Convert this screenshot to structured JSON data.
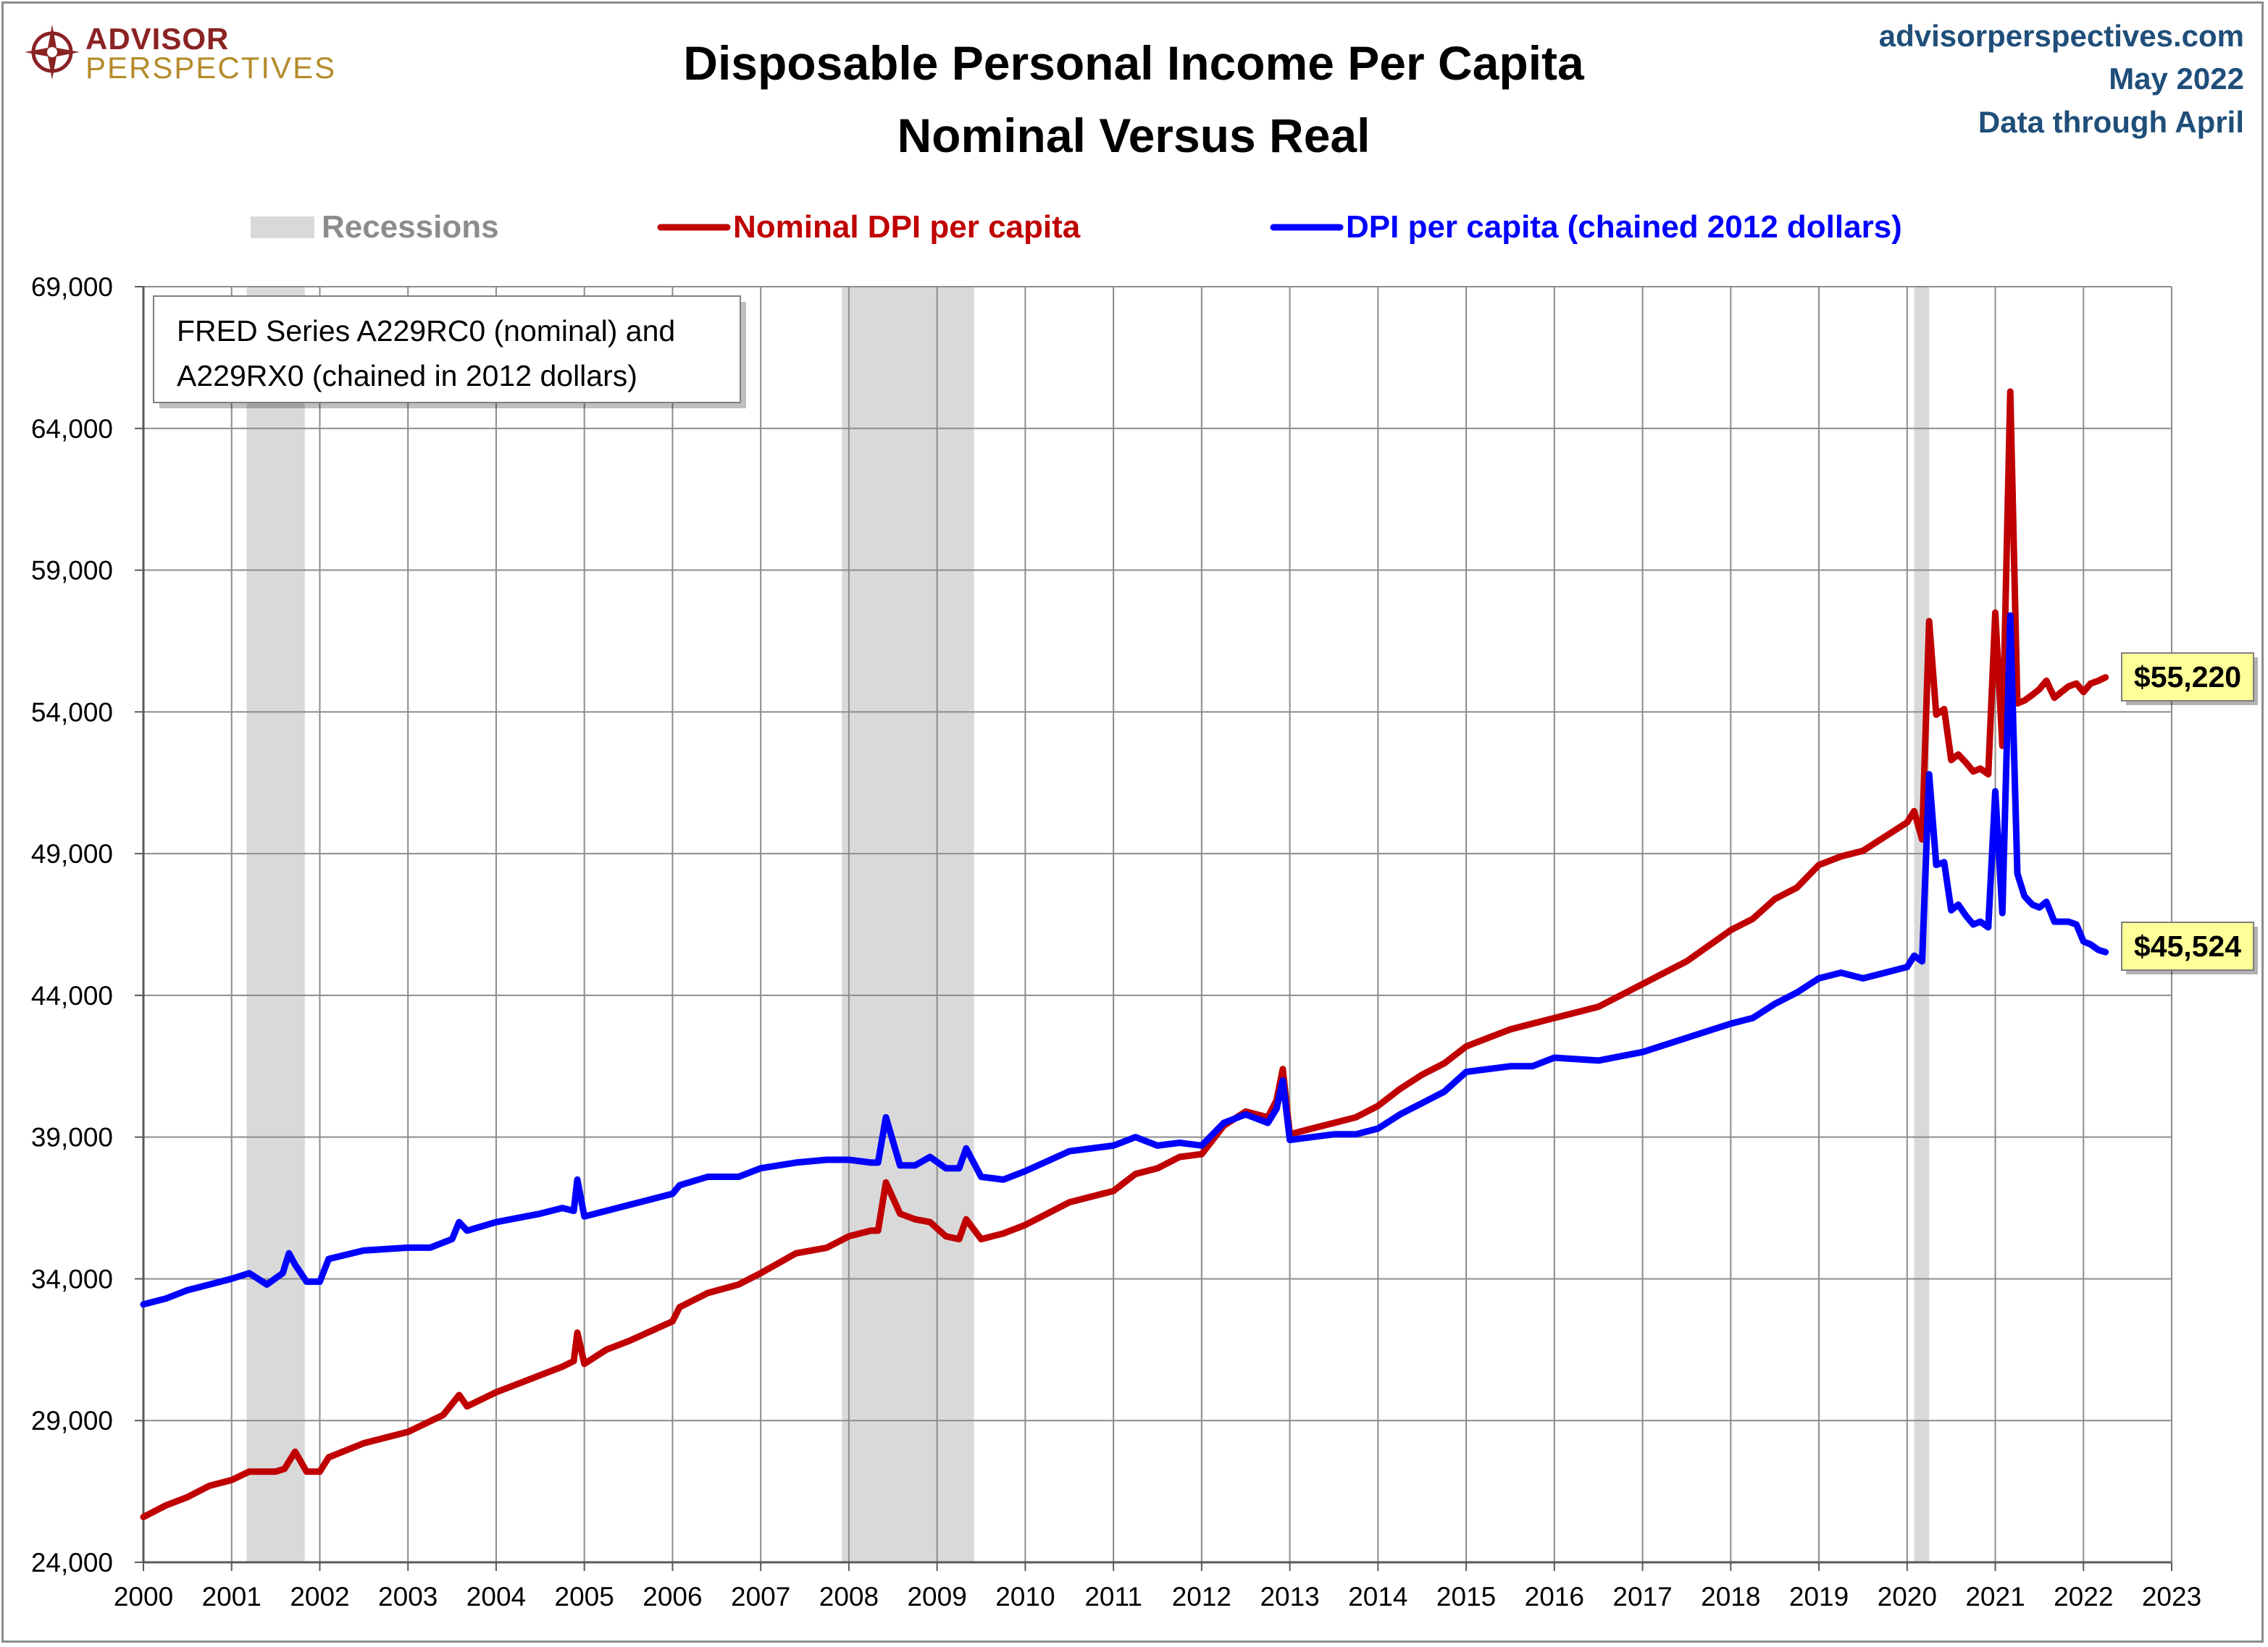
{
  "header": {
    "logo_top": "ADVISOR",
    "logo_bottom": "PERSPECTIVES",
    "title_line1": "Disposable Personal Income Per Capita",
    "title_line2": "Nominal Versus Real",
    "source_site": "advisorperspectives.com",
    "source_date": "May 2022",
    "source_through": "Data through April"
  },
  "legend": {
    "recessions": "Recessions",
    "nominal": "Nominal DPI per capita",
    "real": "DPI per capita (chained 2012 dollars)"
  },
  "note": {
    "line1": "FRED Series A229RC0 (nominal) and",
    "line2": "A229RX0 (chained in 2012 dollars)"
  },
  "end_labels": {
    "nominal": "$55,220",
    "real": "$45,524"
  },
  "colors": {
    "nominal": "#c00000",
    "real": "#0000ff",
    "recession": "#d9d9d9",
    "grid": "#8c8c8c",
    "label_bg": "#ffff99",
    "source": "#1f4e79"
  },
  "chart_data": {
    "type": "line",
    "title": "Disposable Personal Income Per Capita Nominal Versus Real",
    "xlim": [
      2000,
      2023
    ],
    "ylim": [
      24000,
      69000
    ],
    "x_ticks": [
      "2000",
      "2001",
      "2002",
      "2003",
      "2004",
      "2005",
      "2006",
      "2007",
      "2008",
      "2009",
      "2010",
      "2011",
      "2012",
      "2013",
      "2014",
      "2015",
      "2016",
      "2017",
      "2018",
      "2019",
      "2020",
      "2021",
      "2022",
      "2023"
    ],
    "y_ticks": [
      "24,000",
      "29,000",
      "34,000",
      "39,000",
      "44,000",
      "49,000",
      "54,000",
      "59,000",
      "64,000",
      "69,000"
    ],
    "y_tick_values": [
      24000,
      29000,
      34000,
      39000,
      44000,
      49000,
      54000,
      59000,
      64000,
      69000
    ],
    "grid": true,
    "legend_position": "top",
    "recessions": [
      {
        "start": 2001.17,
        "end": 2001.83
      },
      {
        "start": 2007.92,
        "end": 2009.42
      },
      {
        "start": 2020.08,
        "end": 2020.25
      }
    ],
    "series": [
      {
        "name": "Nominal DPI per capita",
        "color": "#c00000",
        "points": [
          [
            2000.0,
            25600
          ],
          [
            2000.25,
            26000
          ],
          [
            2000.5,
            26300
          ],
          [
            2000.75,
            26700
          ],
          [
            2001.0,
            26900
          ],
          [
            2001.2,
            27200
          ],
          [
            2001.5,
            27200
          ],
          [
            2001.6,
            27300
          ],
          [
            2001.72,
            27900
          ],
          [
            2001.85,
            27200
          ],
          [
            2002.0,
            27200
          ],
          [
            2002.1,
            27700
          ],
          [
            2002.5,
            28200
          ],
          [
            2003.0,
            28600
          ],
          [
            2003.4,
            29200
          ],
          [
            2003.58,
            29900
          ],
          [
            2003.67,
            29500
          ],
          [
            2004.0,
            30000
          ],
          [
            2004.5,
            30600
          ],
          [
            2004.75,
            30900
          ],
          [
            2004.88,
            31100
          ],
          [
            2004.92,
            32100
          ],
          [
            2005.0,
            31000
          ],
          [
            2005.25,
            31500
          ],
          [
            2005.5,
            31800
          ],
          [
            2006.0,
            32500
          ],
          [
            2006.08,
            33000
          ],
          [
            2006.4,
            33500
          ],
          [
            2006.75,
            33800
          ],
          [
            2007.0,
            34200
          ],
          [
            2007.4,
            34900
          ],
          [
            2007.75,
            35100
          ],
          [
            2008.0,
            35500
          ],
          [
            2008.25,
            35700
          ],
          [
            2008.33,
            35700
          ],
          [
            2008.42,
            37400
          ],
          [
            2008.58,
            36300
          ],
          [
            2008.75,
            36100
          ],
          [
            2008.92,
            36000
          ],
          [
            2009.1,
            35500
          ],
          [
            2009.25,
            35400
          ],
          [
            2009.33,
            36100
          ],
          [
            2009.5,
            35400
          ],
          [
            2009.75,
            35600
          ],
          [
            2010.0,
            35900
          ],
          [
            2010.5,
            36700
          ],
          [
            2011.0,
            37100
          ],
          [
            2011.25,
            37700
          ],
          [
            2011.5,
            37900
          ],
          [
            2011.75,
            38300
          ],
          [
            2012.0,
            38400
          ],
          [
            2012.25,
            39400
          ],
          [
            2012.5,
            39900
          ],
          [
            2012.75,
            39700
          ],
          [
            2012.85,
            40300
          ],
          [
            2012.92,
            41400
          ],
          [
            2013.0,
            39100
          ],
          [
            2013.25,
            39300
          ],
          [
            2013.5,
            39500
          ],
          [
            2013.75,
            39700
          ],
          [
            2014.0,
            40100
          ],
          [
            2014.25,
            40700
          ],
          [
            2014.5,
            41200
          ],
          [
            2014.75,
            41600
          ],
          [
            2015.0,
            42200
          ],
          [
            2015.25,
            42500
          ],
          [
            2015.5,
            42800
          ],
          [
            2015.75,
            43000
          ],
          [
            2016.0,
            43200
          ],
          [
            2016.5,
            43600
          ],
          [
            2017.0,
            44400
          ],
          [
            2017.5,
            45200
          ],
          [
            2018.0,
            46300
          ],
          [
            2018.25,
            46700
          ],
          [
            2018.5,
            47400
          ],
          [
            2018.75,
            47800
          ],
          [
            2019.0,
            48600
          ],
          [
            2019.25,
            48900
          ],
          [
            2019.5,
            49100
          ],
          [
            2019.75,
            49600
          ],
          [
            2020.0,
            50100
          ],
          [
            2020.08,
            50500
          ],
          [
            2020.17,
            49500
          ],
          [
            2020.25,
            57200
          ],
          [
            2020.33,
            53900
          ],
          [
            2020.42,
            54100
          ],
          [
            2020.5,
            52300
          ],
          [
            2020.58,
            52500
          ],
          [
            2020.67,
            52200
          ],
          [
            2020.75,
            51900
          ],
          [
            2020.83,
            52000
          ],
          [
            2020.92,
            51800
          ],
          [
            2021.0,
            57500
          ],
          [
            2021.08,
            52800
          ],
          [
            2021.17,
            65300
          ],
          [
            2021.25,
            54300
          ],
          [
            2021.33,
            54400
          ],
          [
            2021.42,
            54600
          ],
          [
            2021.5,
            54800
          ],
          [
            2021.58,
            55100
          ],
          [
            2021.67,
            54500
          ],
          [
            2021.75,
            54700
          ],
          [
            2021.83,
            54900
          ],
          [
            2021.92,
            55000
          ],
          [
            2022.0,
            54700
          ],
          [
            2022.08,
            55000
          ],
          [
            2022.17,
            55100
          ],
          [
            2022.25,
            55220
          ]
        ]
      },
      {
        "name": "DPI per capita (chained 2012 dollars)",
        "color": "#0000ff",
        "points": [
          [
            2000.0,
            33100
          ],
          [
            2000.25,
            33300
          ],
          [
            2000.5,
            33600
          ],
          [
            2000.75,
            33800
          ],
          [
            2001.0,
            34000
          ],
          [
            2001.2,
            34200
          ],
          [
            2001.4,
            33800
          ],
          [
            2001.58,
            34200
          ],
          [
            2001.65,
            34900
          ],
          [
            2001.72,
            34500
          ],
          [
            2001.85,
            33900
          ],
          [
            2002.0,
            33900
          ],
          [
            2002.1,
            34700
          ],
          [
            2002.5,
            35000
          ],
          [
            2003.0,
            35100
          ],
          [
            2003.25,
            35100
          ],
          [
            2003.5,
            35400
          ],
          [
            2003.58,
            36000
          ],
          [
            2003.67,
            35700
          ],
          [
            2004.0,
            36000
          ],
          [
            2004.5,
            36300
          ],
          [
            2004.75,
            36500
          ],
          [
            2004.88,
            36400
          ],
          [
            2004.92,
            37500
          ],
          [
            2005.0,
            36200
          ],
          [
            2005.25,
            36400
          ],
          [
            2005.5,
            36600
          ],
          [
            2006.0,
            37000
          ],
          [
            2006.08,
            37300
          ],
          [
            2006.4,
            37600
          ],
          [
            2006.75,
            37600
          ],
          [
            2007.0,
            37900
          ],
          [
            2007.4,
            38100
          ],
          [
            2007.75,
            38200
          ],
          [
            2008.0,
            38200
          ],
          [
            2008.25,
            38100
          ],
          [
            2008.33,
            38100
          ],
          [
            2008.42,
            39700
          ],
          [
            2008.58,
            38000
          ],
          [
            2008.75,
            38000
          ],
          [
            2008.92,
            38300
          ],
          [
            2009.1,
            37900
          ],
          [
            2009.25,
            37900
          ],
          [
            2009.33,
            38600
          ],
          [
            2009.5,
            37600
          ],
          [
            2009.75,
            37500
          ],
          [
            2010.0,
            37800
          ],
          [
            2010.5,
            38500
          ],
          [
            2011.0,
            38700
          ],
          [
            2011.25,
            39000
          ],
          [
            2011.5,
            38700
          ],
          [
            2011.75,
            38800
          ],
          [
            2012.0,
            38700
          ],
          [
            2012.25,
            39500
          ],
          [
            2012.5,
            39800
          ],
          [
            2012.75,
            39500
          ],
          [
            2012.85,
            40000
          ],
          [
            2012.92,
            41000
          ],
          [
            2013.0,
            38900
          ],
          [
            2013.25,
            39000
          ],
          [
            2013.5,
            39100
          ],
          [
            2013.75,
            39100
          ],
          [
            2014.0,
            39300
          ],
          [
            2014.25,
            39800
          ],
          [
            2014.5,
            40200
          ],
          [
            2014.75,
            40600
          ],
          [
            2015.0,
            41300
          ],
          [
            2015.25,
            41400
          ],
          [
            2015.5,
            41500
          ],
          [
            2015.75,
            41500
          ],
          [
            2016.0,
            41800
          ],
          [
            2016.5,
            41700
          ],
          [
            2017.0,
            42000
          ],
          [
            2017.5,
            42500
          ],
          [
            2018.0,
            43000
          ],
          [
            2018.25,
            43200
          ],
          [
            2018.5,
            43700
          ],
          [
            2018.75,
            44100
          ],
          [
            2019.0,
            44600
          ],
          [
            2019.25,
            44800
          ],
          [
            2019.5,
            44600
          ],
          [
            2019.75,
            44800
          ],
          [
            2020.0,
            45000
          ],
          [
            2020.08,
            45400
          ],
          [
            2020.17,
            45200
          ],
          [
            2020.25,
            51800
          ],
          [
            2020.33,
            48600
          ],
          [
            2020.42,
            48700
          ],
          [
            2020.5,
            47000
          ],
          [
            2020.58,
            47200
          ],
          [
            2020.67,
            46800
          ],
          [
            2020.75,
            46500
          ],
          [
            2020.83,
            46600
          ],
          [
            2020.92,
            46400
          ],
          [
            2021.0,
            51200
          ],
          [
            2021.08,
            46900
          ],
          [
            2021.17,
            57400
          ],
          [
            2021.25,
            48300
          ],
          [
            2021.33,
            47500
          ],
          [
            2021.42,
            47200
          ],
          [
            2021.5,
            47100
          ],
          [
            2021.58,
            47300
          ],
          [
            2021.67,
            46600
          ],
          [
            2021.75,
            46600
          ],
          [
            2021.83,
            46600
          ],
          [
            2021.92,
            46500
          ],
          [
            2022.0,
            45900
          ],
          [
            2022.08,
            45800
          ],
          [
            2022.17,
            45600
          ],
          [
            2022.25,
            45524
          ]
        ]
      }
    ]
  }
}
